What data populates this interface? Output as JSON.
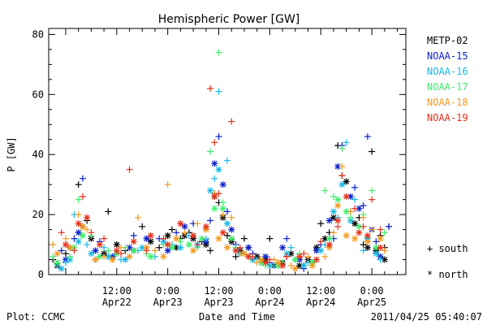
{
  "chart_data": {
    "type": "scatter",
    "title": "Hemispheric Power [GW]",
    "xlabel": "Date and Time",
    "ylabel": "P [GW]",
    "xlim": [
      -4,
      80
    ],
    "ylim": [
      0,
      82
    ],
    "yticks": [
      0,
      20,
      40,
      60,
      80
    ],
    "xticks": [
      {
        "x": 12,
        "time": "12:00",
        "date": "Apr22"
      },
      {
        "x": 24,
        "time": "0:00",
        "date": "Apr23"
      },
      {
        "x": 36,
        "time": "12:00",
        "date": "Apr23"
      },
      {
        "x": 48,
        "time": "0:00",
        "date": "Apr24"
      },
      {
        "x": 60,
        "time": "12:00",
        "date": "Apr24"
      },
      {
        "x": 72,
        "time": "0:00",
        "date": "Apr25"
      }
    ],
    "x_units": "hours since 2011-04-22 00:00 UT",
    "grid": false,
    "legend_position": "right",
    "symbol_legend": {
      "south": "+ south",
      "north": "* north"
    },
    "footer_left": "Plot: CCMC",
    "footer_right": "2011/04/25 05:40:07",
    "series": [
      {
        "name": "METP-02",
        "color": "#000000",
        "south": [
          [
            -3,
            5
          ],
          [
            0,
            7
          ],
          [
            3,
            30
          ],
          [
            5,
            18
          ],
          [
            7,
            5
          ],
          [
            10,
            21
          ],
          [
            14,
            8
          ],
          [
            18,
            16
          ],
          [
            22,
            9
          ],
          [
            25,
            15
          ],
          [
            27,
            12
          ],
          [
            29,
            14
          ],
          [
            32,
            11
          ],
          [
            34,
            8
          ],
          [
            35,
            27
          ],
          [
            36,
            24
          ],
          [
            38,
            13
          ],
          [
            40,
            6
          ],
          [
            42,
            12
          ],
          [
            44,
            5
          ],
          [
            46,
            4
          ],
          [
            48,
            12
          ],
          [
            50,
            3
          ],
          [
            52,
            6
          ],
          [
            54,
            5
          ],
          [
            56,
            3
          ],
          [
            58,
            4
          ],
          [
            60,
            17
          ],
          [
            62,
            14
          ],
          [
            64,
            43
          ],
          [
            65,
            33
          ],
          [
            67,
            21
          ],
          [
            69,
            19
          ],
          [
            70,
            10
          ],
          [
            72,
            41
          ],
          [
            74,
            13
          ],
          [
            75,
            9
          ],
          [
            76,
            16
          ]
        ],
        "north": [
          [
            -2,
            3
          ],
          [
            1,
            9
          ],
          [
            4,
            16
          ],
          [
            6,
            12
          ],
          [
            9,
            7
          ],
          [
            12,
            10
          ],
          [
            16,
            8
          ],
          [
            20,
            11
          ],
          [
            24,
            13
          ],
          [
            26,
            9
          ],
          [
            28,
            13
          ],
          [
            30,
            12
          ],
          [
            33,
            10
          ],
          [
            35,
            26
          ],
          [
            37,
            19
          ],
          [
            39,
            11
          ],
          [
            41,
            8
          ],
          [
            43,
            9
          ],
          [
            45,
            6
          ],
          [
            47,
            5
          ],
          [
            49,
            3
          ],
          [
            51,
            4
          ],
          [
            53,
            7
          ],
          [
            55,
            3
          ],
          [
            57,
            5
          ],
          [
            59,
            9
          ],
          [
            61,
            12
          ],
          [
            63,
            19
          ],
          [
            66,
            31
          ],
          [
            68,
            17
          ],
          [
            71,
            9
          ],
          [
            73,
            8
          ],
          [
            75,
            5
          ]
        ]
      },
      {
        "name": "NOAA-15",
        "color": "#0a1fcc",
        "south": [
          [
            -1,
            8
          ],
          [
            2,
            12
          ],
          [
            4,
            32
          ],
          [
            8,
            11
          ],
          [
            12,
            7
          ],
          [
            16,
            13
          ],
          [
            22,
            12
          ],
          [
            26,
            14
          ],
          [
            30,
            17
          ],
          [
            34,
            18
          ],
          [
            36,
            46
          ],
          [
            38,
            21
          ],
          [
            40,
            10
          ],
          [
            44,
            7
          ],
          [
            48,
            4
          ],
          [
            52,
            12
          ],
          [
            56,
            2
          ],
          [
            60,
            10
          ],
          [
            63,
            12
          ],
          [
            65,
            43
          ],
          [
            68,
            29
          ],
          [
            70,
            23
          ],
          [
            71,
            46
          ],
          [
            73,
            11
          ],
          [
            76,
            16
          ]
        ],
        "north": [
          [
            0,
            5
          ],
          [
            3,
            14
          ],
          [
            7,
            8
          ],
          [
            11,
            6
          ],
          [
            15,
            9
          ],
          [
            19,
            12
          ],
          [
            24,
            8
          ],
          [
            28,
            16
          ],
          [
            33,
            11
          ],
          [
            35,
            37
          ],
          [
            37,
            30
          ],
          [
            39,
            15
          ],
          [
            43,
            9
          ],
          [
            47,
            6
          ],
          [
            51,
            9
          ],
          [
            55,
            5
          ],
          [
            59,
            8
          ],
          [
            62,
            18
          ],
          [
            64,
            36
          ],
          [
            67,
            26
          ],
          [
            69,
            22
          ],
          [
            72,
            15
          ],
          [
            74,
            6
          ]
        ]
      },
      {
        "name": "NOAA-16",
        "color": "#19b8e6",
        "south": [
          [
            -2,
            3
          ],
          [
            0,
            4
          ],
          [
            2,
            20
          ],
          [
            5,
            10
          ],
          [
            9,
            9
          ],
          [
            13,
            5
          ],
          [
            17,
            8
          ],
          [
            21,
            6
          ],
          [
            25,
            10
          ],
          [
            29,
            13
          ],
          [
            33,
            12
          ],
          [
            35,
            32
          ],
          [
            36,
            61
          ],
          [
            38,
            38
          ],
          [
            40,
            8
          ],
          [
            45,
            5
          ],
          [
            49,
            3
          ],
          [
            53,
            9
          ],
          [
            57,
            4
          ],
          [
            61,
            10
          ],
          [
            64,
            19
          ],
          [
            66,
            44
          ],
          [
            68,
            25
          ],
          [
            70,
            8
          ],
          [
            74,
            5
          ]
        ],
        "north": [
          [
            -1,
            2
          ],
          [
            1,
            5
          ],
          [
            3,
            11
          ],
          [
            6,
            7
          ],
          [
            10,
            6
          ],
          [
            14,
            5
          ],
          [
            18,
            9
          ],
          [
            23,
            11
          ],
          [
            27,
            9
          ],
          [
            31,
            10
          ],
          [
            34,
            28
          ],
          [
            36,
            35
          ],
          [
            38,
            17
          ],
          [
            41,
            7
          ],
          [
            44,
            5
          ],
          [
            48,
            3
          ],
          [
            52,
            7
          ],
          [
            56,
            3
          ],
          [
            60,
            8
          ],
          [
            63,
            21
          ],
          [
            65,
            30
          ],
          [
            67,
            18
          ],
          [
            71,
            12
          ],
          [
            73,
            7
          ]
        ]
      },
      {
        "name": "NOAA-17",
        "color": "#3bf06a",
        "south": [
          [
            -3,
            6
          ],
          [
            1,
            6
          ],
          [
            3,
            25
          ],
          [
            6,
            13
          ],
          [
            10,
            8
          ],
          [
            14,
            9
          ],
          [
            19,
            7
          ],
          [
            23,
            10
          ],
          [
            27,
            11
          ],
          [
            31,
            9
          ],
          [
            34,
            41
          ],
          [
            36,
            74
          ],
          [
            37,
            24
          ],
          [
            40,
            9
          ],
          [
            43,
            6
          ],
          [
            47,
            3
          ],
          [
            51,
            4
          ],
          [
            55,
            7
          ],
          [
            59,
            5
          ],
          [
            61,
            28
          ],
          [
            63,
            26
          ],
          [
            65,
            42
          ],
          [
            67,
            19
          ],
          [
            70,
            20
          ],
          [
            72,
            28
          ],
          [
            75,
            14
          ]
        ],
        "north": [
          [
            -2,
            4
          ],
          [
            2,
            9
          ],
          [
            4,
            13
          ],
          [
            8,
            6
          ],
          [
            12,
            7
          ],
          [
            16,
            8
          ],
          [
            20,
            6
          ],
          [
            25,
            9
          ],
          [
            29,
            10
          ],
          [
            32,
            12
          ],
          [
            35,
            22
          ],
          [
            37,
            22
          ],
          [
            39,
            12
          ],
          [
            42,
            7
          ],
          [
            46,
            4
          ],
          [
            50,
            3
          ],
          [
            54,
            5
          ],
          [
            58,
            4
          ],
          [
            62,
            12
          ],
          [
            64,
            25
          ],
          [
            66,
            21
          ],
          [
            69,
            16
          ],
          [
            73,
            9
          ]
        ]
      },
      {
        "name": "NOAA-18",
        "color": "#f59a1e",
        "south": [
          [
            -3,
            10
          ],
          [
            0,
            12
          ],
          [
            3,
            20
          ],
          [
            5,
            15
          ],
          [
            9,
            6
          ],
          [
            13,
            9
          ],
          [
            17,
            19
          ],
          [
            21,
            8
          ],
          [
            24,
            30
          ],
          [
            28,
            14
          ],
          [
            31,
            17
          ],
          [
            35,
            27
          ],
          [
            37,
            20
          ],
          [
            39,
            19
          ],
          [
            41,
            7
          ],
          [
            45,
            4
          ],
          [
            49,
            5
          ],
          [
            53,
            3
          ],
          [
            57,
            6
          ],
          [
            61,
            6
          ],
          [
            63,
            14
          ],
          [
            65,
            36
          ],
          [
            67,
            21
          ],
          [
            70,
            19
          ],
          [
            72,
            15
          ],
          [
            75,
            8
          ]
        ],
        "north": [
          [
            -2,
            7
          ],
          [
            1,
            9
          ],
          [
            4,
            16
          ],
          [
            7,
            5
          ],
          [
            11,
            5
          ],
          [
            15,
            6
          ],
          [
            19,
            9
          ],
          [
            23,
            6
          ],
          [
            26,
            12
          ],
          [
            30,
            8
          ],
          [
            33,
            15
          ],
          [
            36,
            12
          ],
          [
            38,
            9
          ],
          [
            42,
            7
          ],
          [
            46,
            5
          ],
          [
            50,
            4
          ],
          [
            54,
            2
          ],
          [
            58,
            3
          ],
          [
            62,
            9
          ],
          [
            64,
            23
          ],
          [
            66,
            13
          ],
          [
            68,
            12
          ],
          [
            71,
            11
          ],
          [
            74,
            12
          ]
        ]
      },
      {
        "name": "NOAA-19",
        "color": "#e8301a",
        "south": [
          [
            -1,
            14
          ],
          [
            2,
            8
          ],
          [
            4,
            26
          ],
          [
            6,
            14
          ],
          [
            9,
            12
          ],
          [
            13,
            7
          ],
          [
            15,
            35
          ],
          [
            19,
            8
          ],
          [
            23,
            12
          ],
          [
            27,
            17
          ],
          [
            31,
            10
          ],
          [
            34,
            62
          ],
          [
            35,
            44
          ],
          [
            36,
            27
          ],
          [
            39,
            51
          ],
          [
            41,
            9
          ],
          [
            44,
            6
          ],
          [
            48,
            5
          ],
          [
            52,
            6
          ],
          [
            56,
            7
          ],
          [
            60,
            11
          ],
          [
            64,
            16
          ],
          [
            65,
            33
          ],
          [
            68,
            22
          ],
          [
            70,
            16
          ],
          [
            72,
            25
          ],
          [
            74,
            15
          ]
        ],
        "north": [
          [
            0,
            10
          ],
          [
            3,
            17
          ],
          [
            5,
            19
          ],
          [
            8,
            10
          ],
          [
            12,
            8
          ],
          [
            16,
            11
          ],
          [
            20,
            13
          ],
          [
            24,
            10
          ],
          [
            27,
            17
          ],
          [
            30,
            13
          ],
          [
            33,
            16
          ],
          [
            35,
            26
          ],
          [
            37,
            14
          ],
          [
            40,
            8
          ],
          [
            43,
            6
          ],
          [
            47,
            4
          ],
          [
            51,
            3
          ],
          [
            55,
            6
          ],
          [
            59,
            5
          ],
          [
            62,
            10
          ],
          [
            64,
            18
          ],
          [
            66,
            26
          ],
          [
            69,
            14
          ],
          [
            71,
            13
          ],
          [
            74,
            9
          ]
        ]
      }
    ]
  }
}
